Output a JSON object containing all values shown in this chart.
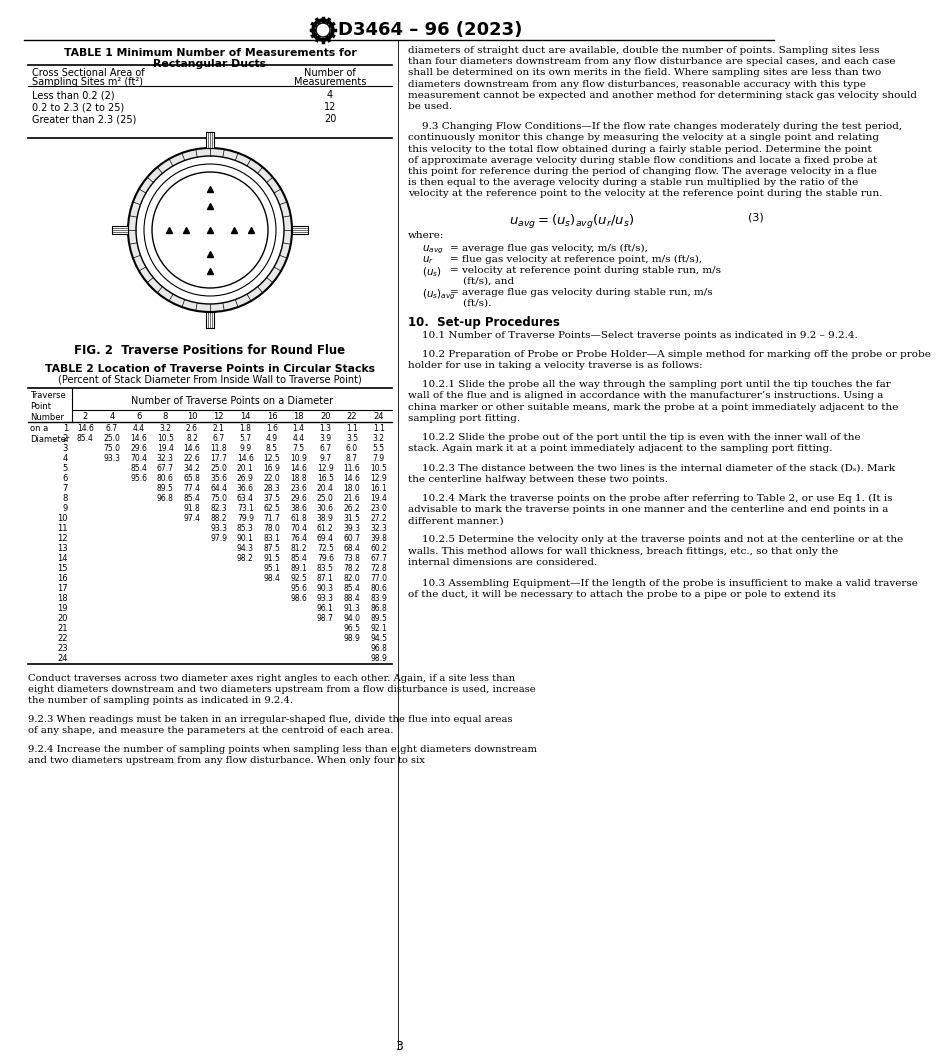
{
  "header_title": "D3464 – 96 (2023)",
  "page_number": "3",
  "bg_color": "#ffffff",
  "table1_title": "TABLE 1 Minimum Number of Measurements for\nRectangular Ducts",
  "table1_col1_header1": "Cross Sectional Area of",
  "table1_col1_header2": "Sampling Sites m² (ft²)",
  "table1_col2_header1": "Number of",
  "table1_col2_header2": "Measurements",
  "table1_rows": [
    [
      "Less than 0.2 (2)",
      "4"
    ],
    [
      "0.2 to 2.3 (2 to 25)",
      "12"
    ],
    [
      "Greater than 2.3 (25)",
      "20"
    ]
  ],
  "fig2_caption": "FIG. 2  Traverse Positions for Round Flue",
  "table2_title": "TABLE 2 Location of Traverse Points in Circular Stacks",
  "table2_subtitle": "(Percent of Stack Diameter From Inside Wall to Traverse Point)",
  "table2_diameter_label": "Number of Traverse Points on a Diameter",
  "table2_diameters": [
    2,
    4,
    6,
    8,
    10,
    12,
    14,
    16,
    18,
    20,
    22,
    24
  ],
  "table2_rows": [
    [
      1,
      "14.6",
      "6.7",
      "4.4",
      "3.2",
      "2.6",
      "2.1",
      "1.8",
      "1.6",
      "1.4",
      "1.3",
      "1.1",
      "1.1"
    ],
    [
      2,
      "85.4",
      "25.0",
      "14.6",
      "10.5",
      "8.2",
      "6.7",
      "5.7",
      "4.9",
      "4.4",
      "3.9",
      "3.5",
      "3.2"
    ],
    [
      3,
      "",
      "75.0",
      "29.6",
      "19.4",
      "14.6",
      "11.8",
      "9.9",
      "8.5",
      "7.5",
      "6.7",
      "6.0",
      "5.5"
    ],
    [
      4,
      "",
      "93.3",
      "70.4",
      "32.3",
      "22.6",
      "17.7",
      "14.6",
      "12.5",
      "10.9",
      "9.7",
      "8.7",
      "7.9"
    ],
    [
      5,
      "",
      "",
      "85.4",
      "67.7",
      "34.2",
      "25.0",
      "20.1",
      "16.9",
      "14.6",
      "12.9",
      "11.6",
      "10.5"
    ],
    [
      6,
      "",
      "",
      "95.6",
      "80.6",
      "65.8",
      "35.6",
      "26.9",
      "22.0",
      "18.8",
      "16.5",
      "14.6",
      "12.9"
    ],
    [
      7,
      "",
      "",
      "",
      "89.5",
      "77.4",
      "64.4",
      "36.6",
      "28.3",
      "23.6",
      "20.4",
      "18.0",
      "16.1"
    ],
    [
      8,
      "",
      "",
      "",
      "96.8",
      "85.4",
      "75.0",
      "63.4",
      "37.5",
      "29.6",
      "25.0",
      "21.6",
      "19.4"
    ],
    [
      9,
      "",
      "",
      "",
      "",
      "91.8",
      "82.3",
      "73.1",
      "62.5",
      "38.6",
      "30.6",
      "26.2",
      "23.0"
    ],
    [
      10,
      "",
      "",
      "",
      "",
      "97.4",
      "88.2",
      "79.9",
      "71.7",
      "61.8",
      "38.9",
      "31.5",
      "27.2"
    ],
    [
      11,
      "",
      "",
      "",
      "",
      "",
      "93.3",
      "85.3",
      "78.0",
      "70.4",
      "61.2",
      "39.3",
      "32.3"
    ],
    [
      12,
      "",
      "",
      "",
      "",
      "",
      "97.9",
      "90.1",
      "83.1",
      "76.4",
      "69.4",
      "60.7",
      "39.8"
    ],
    [
      13,
      "",
      "",
      "",
      "",
      "",
      "",
      "94.3",
      "87.5",
      "81.2",
      "72.5",
      "68.4",
      "60.2"
    ],
    [
      14,
      "",
      "",
      "",
      "",
      "",
      "",
      "98.2",
      "91.5",
      "85.4",
      "79.6",
      "73.8",
      "67.7"
    ],
    [
      15,
      "",
      "",
      "",
      "",
      "",
      "",
      "",
      "95.1",
      "89.1",
      "83.5",
      "78.2",
      "72.8"
    ],
    [
      16,
      "",
      "",
      "",
      "",
      "",
      "",
      "",
      "98.4",
      "92.5",
      "87.1",
      "82.0",
      "77.0"
    ],
    [
      17,
      "",
      "",
      "",
      "",
      "",
      "",
      "",
      "",
      "95.6",
      "90.3",
      "85.4",
      "80.6"
    ],
    [
      18,
      "",
      "",
      "",
      "",
      "",
      "",
      "",
      "",
      "98.6",
      "93.3",
      "88.4",
      "83.9"
    ],
    [
      19,
      "",
      "",
      "",
      "",
      "",
      "",
      "",
      "",
      "",
      "96.1",
      "91.3",
      "86.8"
    ],
    [
      20,
      "",
      "",
      "",
      "",
      "",
      "",
      "",
      "",
      "",
      "98.7",
      "94.0",
      "89.5"
    ],
    [
      21,
      "",
      "",
      "",
      "",
      "",
      "",
      "",
      "",
      "",
      "",
      "96.5",
      "92.1"
    ],
    [
      22,
      "",
      "",
      "",
      "",
      "",
      "",
      "",
      "",
      "",
      "",
      "98.9",
      "94.5"
    ],
    [
      23,
      "",
      "",
      "",
      "",
      "",
      "",
      "",
      "",
      "",
      "",
      "",
      "96.8"
    ],
    [
      24,
      "",
      "",
      "",
      "",
      "",
      "",
      "",
      "",
      "",
      "",
      "",
      "98.9"
    ]
  ],
  "right_para0": "diameters of straight duct are available, double the number of points. Sampling sites less than four diameters downstream from any flow disturbance are special cases, and each case shall be determined on its own merits in the field. Where sampling sites are less than two diameters downstream from any flow disturbances, reasonable accuracy with this type measurement cannot be expected and another method for determining stack gas velocity should be used.",
  "right_para_93": "9.3 Changing Flow Conditions—If the flow rate changes moderately during the test period, continuously monitor this change by measuring the velocity at a single point and relating this velocity to the total flow obtained during a fairly stable period. Determine the point of approximate average velocity during stable flow conditions and locate a fixed probe at this point for reference during the period of changing flow. The average velocity in a flue is then equal to the average velocity during a stable run multiplied by the ratio of the velocity at the reference point to the velocity at the reference point during the stable run.",
  "right_para_10hdr": "10.  Set-up Procedures",
  "right_para_101": "10.1 Number of Traverse Points—Select traverse points as indicated in 9.2 – 9.2.4.",
  "right_para_102": "10.2 Preparation of Probe or Probe Holder—A simple method for marking off the probe or probe holder for use in taking a velocity traverse is as follows:",
  "right_para_1021": "10.2.1 Slide the probe all the way through the sampling port until the tip touches the far wall of the flue and is aligned in accordance with the manufacturer’s instructions. Using a china marker or other suitable means, mark the probe at a point immediately adjacent to the sampling port fitting.",
  "right_para_1022": "10.2.2 Slide the probe out of the port until the tip is even with the inner wall of the stack. Again mark it at a point immediately adjacent to the sampling port fitting.",
  "right_para_1023": "10.2.3 The distance between the two lines is the internal diameter of the stack (Dₛ). Mark the centerline halfway between these two points.",
  "right_para_1024": "10.2.4 Mark the traverse points on the probe after referring to Table 2, or use Eq 1. (It is advisable to mark the traverse points in one manner and the centerline and end points in a different manner.)",
  "right_para_1025": "10.2.5 Determine the velocity only at the traverse points and not at the centerline or at the walls. This method allows for wall thickness, breach fittings, etc., so that only the internal dimensions are considered.",
  "right_para_103": "10.3 Assembling Equipment—If the length of the probe is insufficient to make a valid traverse of the duct, it will be necessary to attach the probe to a pipe or pole to extend its",
  "bottom_left_para1": "Conduct traverses across two diameter axes right angles to each other. Again, if a site less than eight diameters downstream and two diameters upstream from a flow disturbance is used, increase the number of sampling points as indicated in 9.2.4.",
  "bottom_left_para2": "9.2.3 When readings must be taken in an irregular-shaped flue, divide the flue into equal areas of any shape, and measure the parameters at the centroid of each area.",
  "bottom_left_para3": "9.2.4 Increase the number of sampling points when sampling less than eight diameters downstream and two diameters upstream from any flow disturbance. When only four to six",
  "red_color": "#cc0000",
  "black_color": "#000000"
}
